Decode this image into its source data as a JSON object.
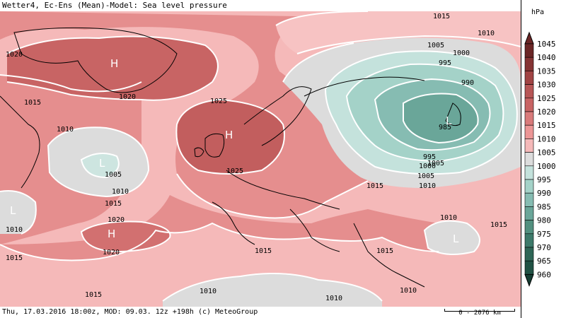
{
  "header": {
    "title": "Wetter4, Ec-Ens (Mean)-Model: Sea level pressure"
  },
  "footer": {
    "text": "Thu, 17.03.2016 18:00z, MOD: 09.03. 12z +198h (c) MeteoGroup",
    "scale_label": "0 - 2076 km"
  },
  "legend": {
    "unit": "hPa",
    "levels": [
      {
        "value": "1045",
        "color": "#6b2626"
      },
      {
        "value": "1040",
        "color": "#853333"
      },
      {
        "value": "1035",
        "color": "#a14444"
      },
      {
        "value": "1030",
        "color": "#b75656"
      },
      {
        "value": "1025",
        "color": "#c86464"
      },
      {
        "value": "1020",
        "color": "#d97b7b"
      },
      {
        "value": "1015",
        "color": "#ec9696"
      },
      {
        "value": "1010",
        "color": "#f5b9b9"
      },
      {
        "value": "1005",
        "color": "#dcdcdc"
      },
      {
        "value": "1000",
        "color": "#c4e2dc"
      },
      {
        "value": "995",
        "color": "#a4d2c8"
      },
      {
        "value": "990",
        "color": "#86bcb2"
      },
      {
        "value": "985",
        "color": "#6aa699"
      },
      {
        "value": "980",
        "color": "#52907f"
      },
      {
        "value": "975",
        "color": "#3d7a6a"
      },
      {
        "value": "970",
        "color": "#2e6656"
      },
      {
        "value": "965",
        "color": "#215244"
      },
      {
        "value": "960",
        "color": "#163e33"
      }
    ]
  },
  "map": {
    "colors": {
      "high1030": "#c25e5e",
      "high1025": "#d27070",
      "mid1020": "#e58e8e",
      "mid1015": "#f5b7b7",
      "low1010": "#d9d9d9",
      "low1005": "#cde5e0",
      "low1000": "#a9d3ca",
      "low995": "#92c4b9",
      "low990": "#6ea79c",
      "low985": "#5b9488",
      "isobar": "#ffffff",
      "coast": "#000000"
    },
    "contour_labels": [
      "1015",
      "1010",
      "1005",
      "1000",
      "995",
      "990",
      "985",
      "1020",
      "1025",
      "1015",
      "1010",
      "1005",
      "1010",
      "1015",
      "1020",
      "1015",
      "1010",
      "1010",
      "1010",
      "1015",
      "1015",
      "1015",
      "1020",
      "995",
      "1000",
      "1005",
      "1010",
      "1005",
      "1020",
      "1010",
      "1010",
      "1025",
      "1015",
      "1015"
    ],
    "centers": [
      {
        "type": "H",
        "label": "H"
      },
      {
        "type": "H",
        "label": "H"
      },
      {
        "type": "H",
        "label": "H"
      },
      {
        "type": "L",
        "label": "L"
      },
      {
        "type": "L",
        "label": "L"
      },
      {
        "type": "L",
        "label": "L"
      },
      {
        "type": "L",
        "label": "L"
      }
    ]
  }
}
